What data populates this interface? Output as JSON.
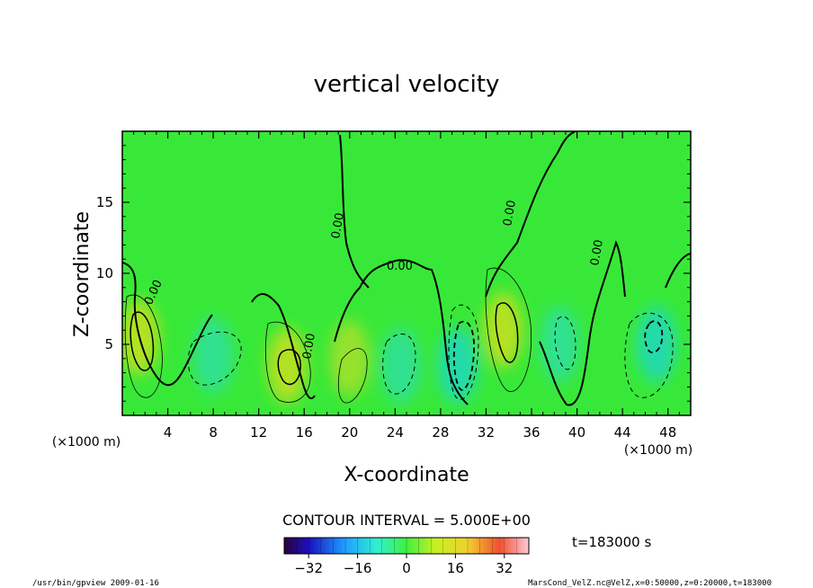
{
  "chart_data": {
    "type": "heatmap",
    "title": "vertical velocity",
    "xlabel": "X-coordinate",
    "ylabel": "Z-coordinate",
    "x_unit_left": "(×1000 m)",
    "x_unit_right": "(×1000 m)",
    "xlim": [
      0,
      50
    ],
    "ylim": [
      0,
      20
    ],
    "x_ticks": [
      4,
      8,
      12,
      16,
      20,
      24,
      28,
      32,
      36,
      40,
      44,
      48
    ],
    "y_ticks": [
      5,
      10,
      15
    ],
    "contour_interval_label": "CONTOUR INTERVAL = 5.000E+00",
    "zero_contour_label": "0.00",
    "time_label": "t=183000 s",
    "colorbar": {
      "min": -40,
      "max": 40,
      "ticks": [
        -32,
        -16,
        0,
        16,
        32
      ]
    },
    "extrema": [
      {
        "x": 1.5,
        "z": 5.5,
        "w": 16,
        "sign": "up"
      },
      {
        "x": 8,
        "z": 4.2,
        "w": -8,
        "sign": "down"
      },
      {
        "x": 14.5,
        "z": 3.5,
        "w": 18,
        "sign": "up"
      },
      {
        "x": 20,
        "z": 4,
        "w": 8,
        "sign": "up"
      },
      {
        "x": 24.5,
        "z": 3.5,
        "w": -6,
        "sign": "down"
      },
      {
        "x": 29.5,
        "z": 3.5,
        "w": -14,
        "sign": "down"
      },
      {
        "x": 33.5,
        "z": 6,
        "w": 16,
        "sign": "up"
      },
      {
        "x": 38.5,
        "z": 5,
        "w": -6,
        "sign": "down"
      },
      {
        "x": 47,
        "z": 5,
        "w": -12,
        "sign": "down"
      }
    ]
  },
  "footer": {
    "left": "/usr/bin/gpview  2009-01-16",
    "right": "MarsCond_VelZ.nc@VelZ,x=0:50000,z=0:20000,t=183000"
  },
  "colors": {
    "background_field": "#38e838",
    "frame": "#000000"
  }
}
